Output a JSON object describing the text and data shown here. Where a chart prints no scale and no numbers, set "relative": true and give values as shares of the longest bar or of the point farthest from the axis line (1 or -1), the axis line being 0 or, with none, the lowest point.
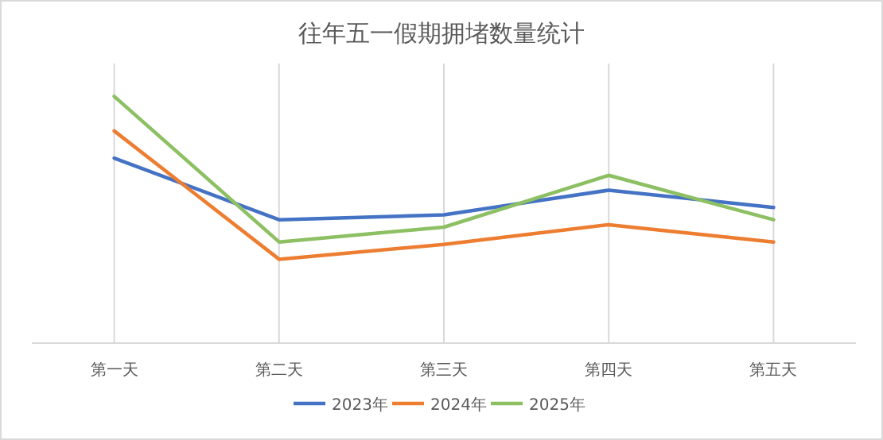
{
  "chart_data": {
    "type": "line",
    "title": "往年五一假期拥堵数量统计",
    "categories": [
      "第一天",
      "第二天",
      "第三天",
      "第四天",
      "第五天"
    ],
    "relative": true,
    "grid": "x",
    "legend": "bottom",
    "marker": "none",
    "line_style": "solid",
    "series": [
      {
        "name": "2023年",
        "color": "#4472c4",
        "values": [
          0.75,
          0.5,
          0.52,
          0.62,
          0.55
        ]
      },
      {
        "name": "2024年",
        "color": "#ed7d31",
        "values": [
          0.86,
          0.34,
          0.4,
          0.48,
          0.41
        ]
      },
      {
        "name": "2025年",
        "color": "#8dbf63",
        "values": [
          1,
          0.41,
          0.47,
          0.68,
          0.5
        ]
      }
    ]
  }
}
